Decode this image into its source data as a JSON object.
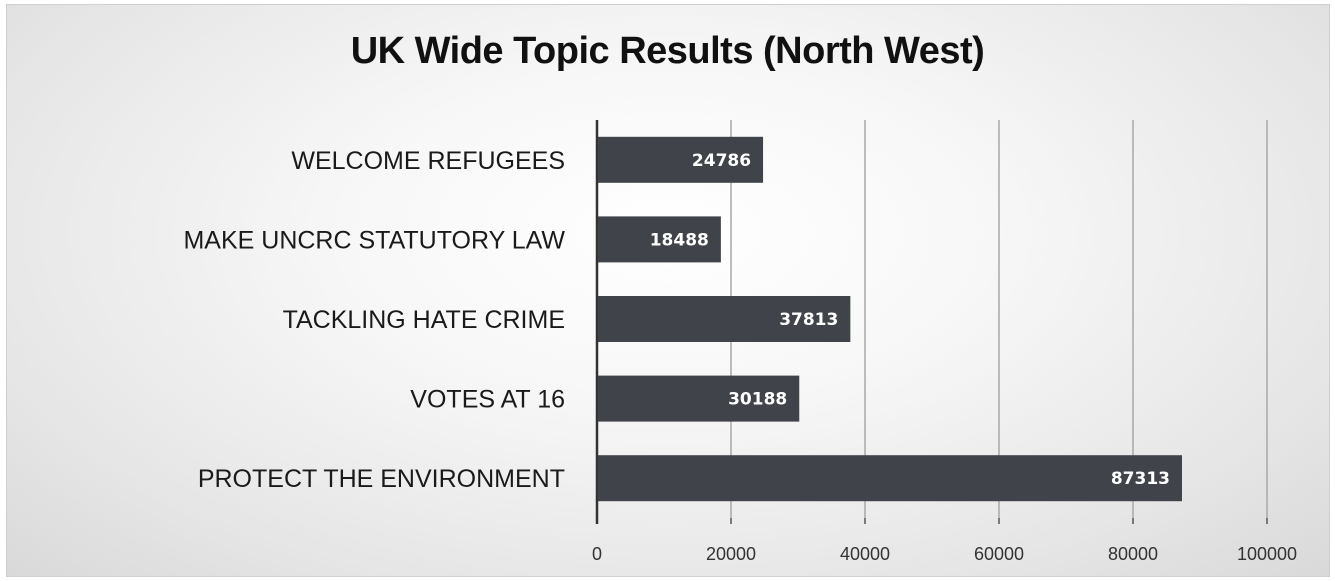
{
  "chart_data": {
    "type": "bar",
    "orientation": "horizontal",
    "title": "UK Wide Topic Results (North West)",
    "categories": [
      "WELCOME REFUGEES",
      "MAKE UNCRC STATUTORY LAW",
      "TACKLING HATE CRIME",
      "VOTES AT 16",
      "PROTECT THE ENVIRONMENT"
    ],
    "values": [
      24786,
      18488,
      37813,
      30188,
      87313
    ],
    "xlim": [
      0,
      100000
    ],
    "x_ticks": [
      0,
      20000,
      40000,
      60000,
      80000,
      100000
    ],
    "xlabel": "",
    "ylabel": "",
    "grid": true,
    "legend": "none",
    "bar_color": "#404349",
    "data_labels": true
  }
}
